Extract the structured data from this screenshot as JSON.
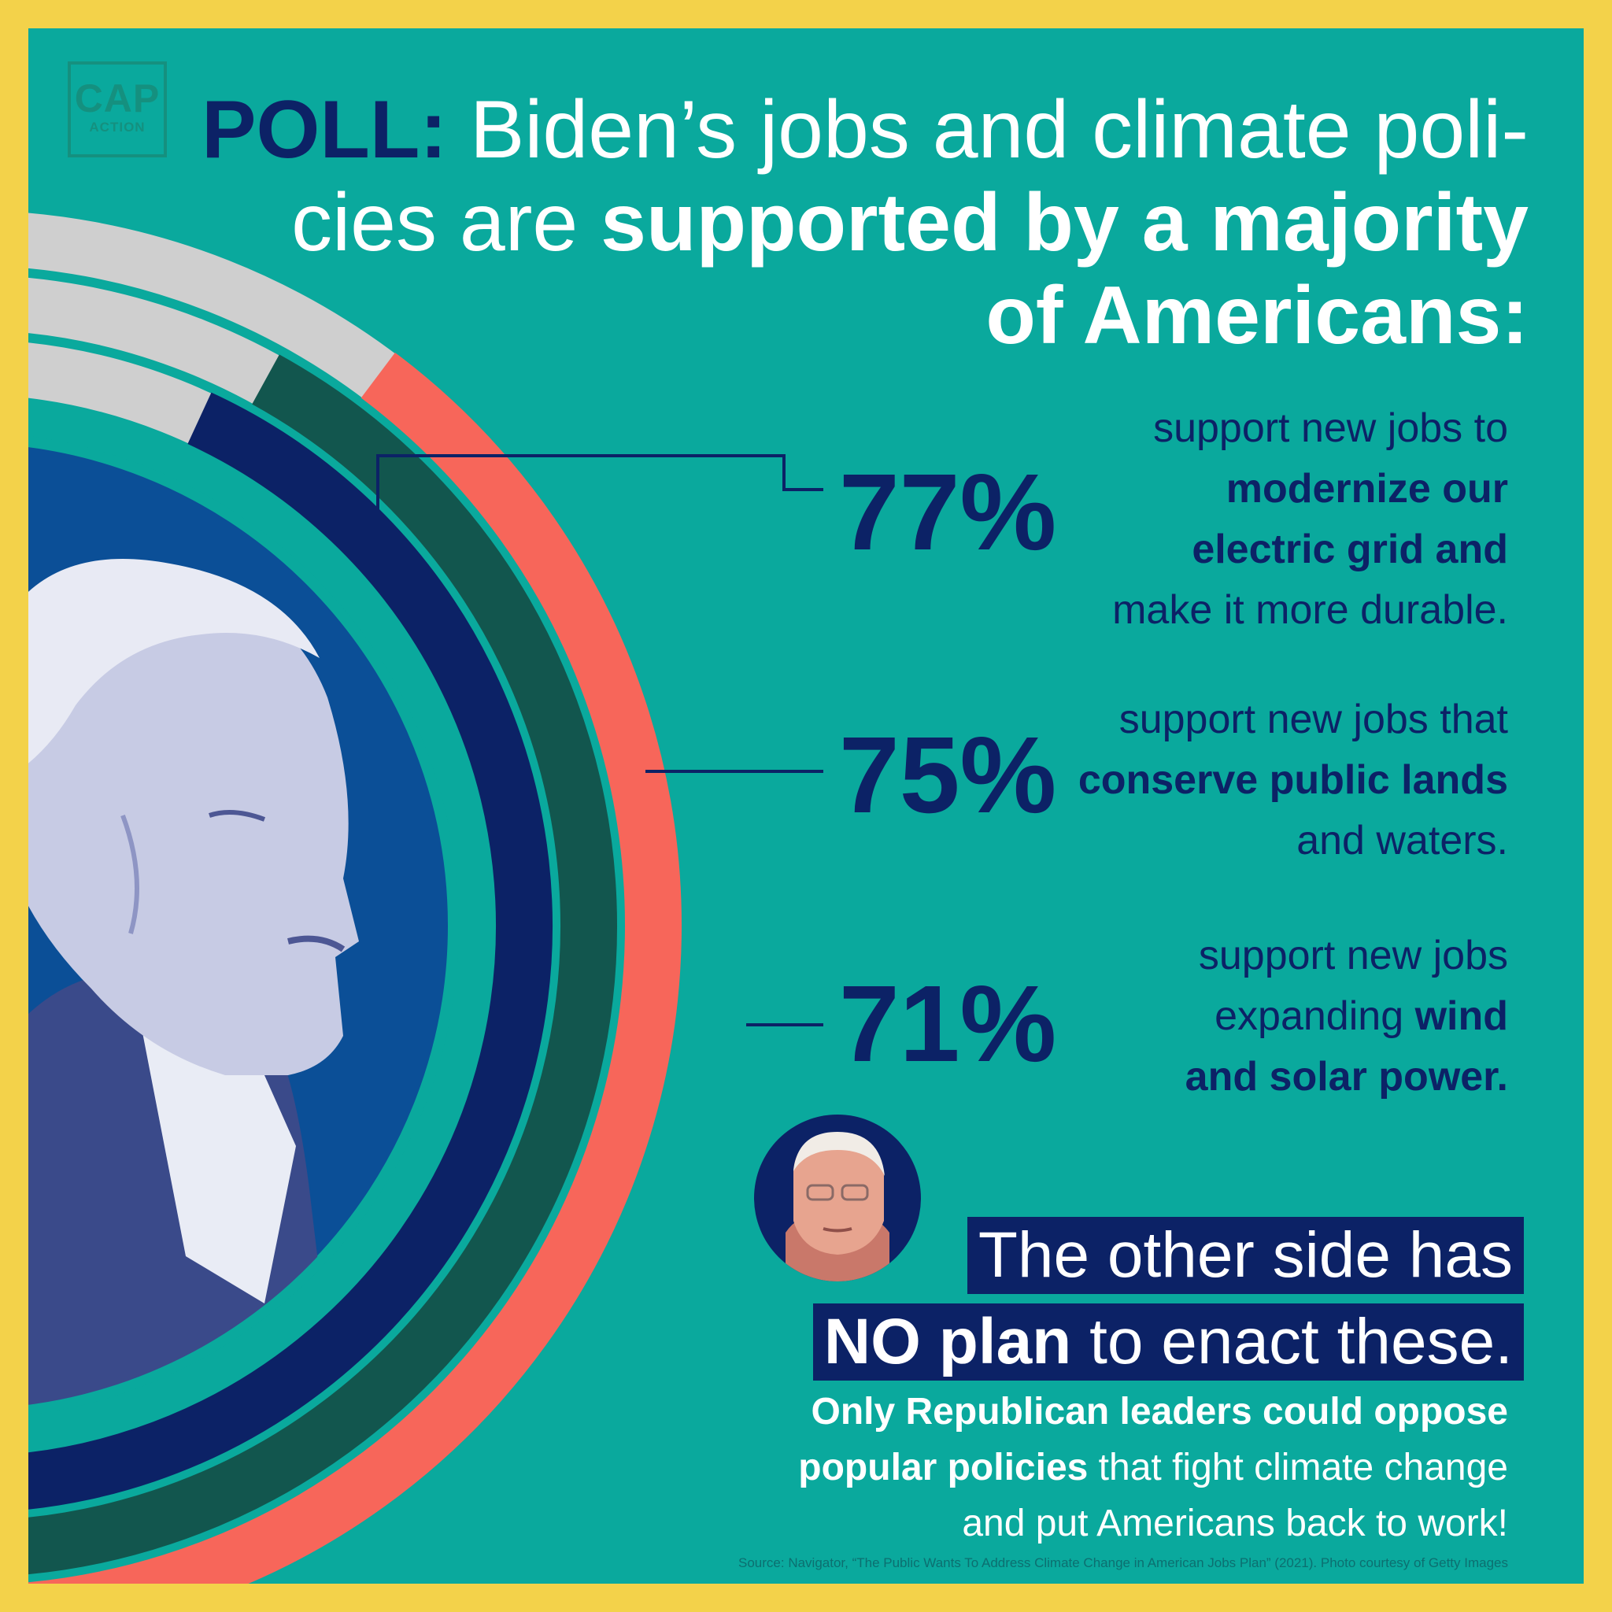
{
  "logo": {
    "line1": "CAP",
    "line2": "ACTION"
  },
  "headline": {
    "prefix": "POLL:",
    "part1": " Biden’s jobs and climate poli-",
    "part2": "cies are ",
    "part3": "supported by a majority",
    "part4": "of Americans:"
  },
  "colors": {
    "background": "#0aa99d",
    "border": "#f3d24a",
    "navy": "#0c2266",
    "dark_green": "#12564e",
    "coral": "#f7665a",
    "ring_gray": "#cfcfcf",
    "inner_blue": "#0b4f97"
  },
  "chart_data": {
    "type": "radial-bar",
    "title": "POLL: Biden’s jobs and climate policies are supported by a majority of Americans:",
    "unit": "%",
    "series": [
      {
        "label": "77%",
        "value": 77,
        "color": "#0c2266"
      },
      {
        "label": "75%",
        "value": 75,
        "color": "#12564e"
      },
      {
        "label": "71%",
        "value": 71,
        "color": "#f7665a"
      }
    ]
  },
  "stats": [
    {
      "value": "77%",
      "desc_line1": "support new jobs to",
      "desc_bold1": "modernize our",
      "desc_bold2": "electric grid and",
      "desc_line2": "make it more durable."
    },
    {
      "value": "75%",
      "desc_line1": "support new jobs that",
      "desc_bold1": "conserve public lands",
      "desc_line2": "and waters."
    },
    {
      "value": "71%",
      "desc_line1": "support new jobs",
      "desc_line2": "expanding ",
      "desc_bold1": "wind",
      "desc_bold2": "and solar power."
    }
  ],
  "callout": {
    "bar1": "The other side has",
    "bar2_bold": "NO plan",
    "bar2_rest": " to enact these."
  },
  "closing": {
    "bold1": "Only Republican leaders could oppose",
    "bold2": "popular policies",
    "rest2": " that fight climate change",
    "line3": "and put Americans back to work!"
  },
  "source": "Source: Navigator, “The Public Wants To Address Climate Change in American Jobs Plan” (2021). Photo courtesy of Getty Images"
}
